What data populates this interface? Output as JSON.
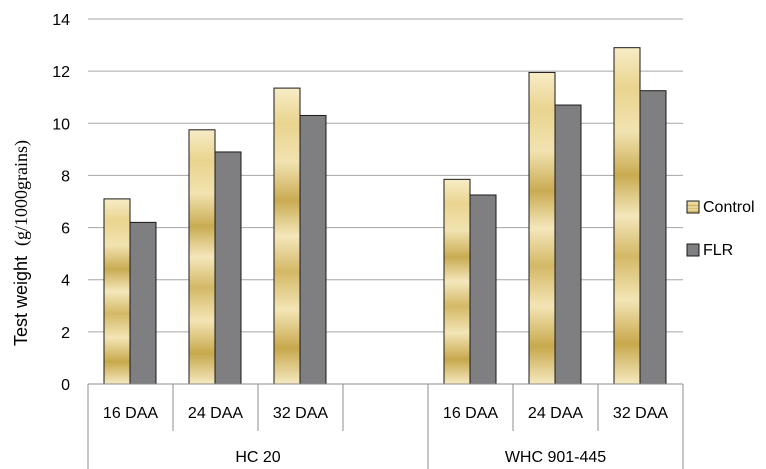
{
  "chart_data": {
    "type": "bar",
    "ylabel_prefix": "Test weight",
    "ylabel_unit": "(g/1000grains)",
    "ylim": [
      0,
      14
    ],
    "yticks": [
      0,
      2,
      4,
      6,
      8,
      10,
      12,
      14
    ],
    "grid": true,
    "legend_position": "right",
    "groups": [
      {
        "label": "HC 20",
        "categories": [
          "16 DAA",
          "24 DAA",
          "32 DAA"
        ]
      },
      {
        "label": "WHC 901-445",
        "categories": [
          "16 DAA",
          "24 DAA",
          "32 DAA"
        ]
      }
    ],
    "series": [
      {
        "name": "Control",
        "values": [
          7.1,
          9.75,
          11.35,
          7.85,
          11.95,
          12.9
        ]
      },
      {
        "name": "FLR",
        "values": [
          6.2,
          8.9,
          10.3,
          7.25,
          10.7,
          11.25
        ]
      }
    ],
    "colors": {
      "control_light": "#f2e3ad",
      "control_dark": "#c8a84a",
      "flr": "#7f7f81",
      "grid": "#a6a6a6",
      "axis": "#8c8c8c"
    }
  }
}
